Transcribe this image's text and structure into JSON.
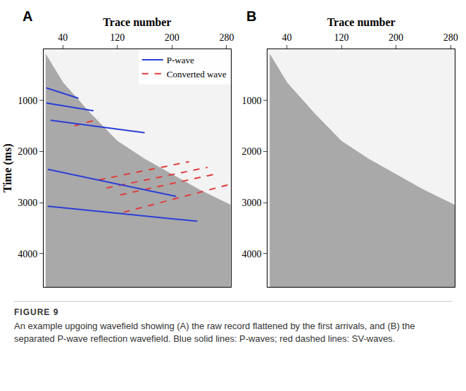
{
  "caption": {
    "label": "FIGURE 9",
    "text": "An example upgoing wavefield showing (A) the raw record flattened by the first arrivals, and (B) the separated P-wave reflection wavefield. Blue solid lines: P-waves; red dashed lines: SV-waves."
  },
  "chart_data": [
    {
      "type": "line",
      "title": "A",
      "xlabel": "Trace number",
      "ylabel": "Time (ms)",
      "xlim": [
        12,
        286
      ],
      "xticks": [
        40,
        120,
        200,
        280
      ],
      "ylim": [
        0,
        4650
      ],
      "yticks": [
        1000,
        2000,
        3000,
        4000
      ],
      "legend": "top right",
      "series": [
        {
          "type": "area",
          "color": "#a9a9a9",
          "x": [
            15,
            40,
            80,
            120,
            160,
            200,
            240,
            286
          ],
          "values": [
            100,
            650,
            1250,
            1800,
            2150,
            2450,
            2750,
            3050
          ]
        },
        {
          "name": "Converted wave",
          "color": "#e03c3c",
          "line_style": "dash",
          "x": [
            57,
            93,
            null,
            93,
            225,
            null,
            104,
            252,
            null,
            124,
            262,
            null,
            129,
            283
          ],
          "values": [
            1500,
            1365,
            null,
            2555,
            2200,
            null,
            2716,
            2310,
            null,
            2850,
            2446,
            null,
            3190,
            2650
          ]
        },
        {
          "name": "P-wave",
          "color": "#2b3fd6",
          "line_style": "solid",
          "x": [
            16,
            63,
            null,
            16,
            85,
            null,
            22,
            160,
            null,
            18,
            206,
            null,
            18,
            237
          ],
          "values": [
            757,
            960,
            null,
            1054,
            1203,
            null,
            1390,
            1635,
            null,
            2350,
            2880,
            null,
            3070,
            3365
          ]
        }
      ]
    },
    {
      "type": "line",
      "title": "B",
      "xlabel": "Trace number",
      "xlim": [
        12,
        286
      ],
      "xticks": [
        40,
        120,
        200,
        280
      ],
      "ylim": [
        0,
        4650
      ],
      "yticks": [
        1000,
        2000,
        3000,
        4000
      ],
      "series": [
        {
          "type": "area",
          "color": "#a9a9a9",
          "x": [
            15,
            40,
            80,
            120,
            160,
            200,
            240,
            286
          ],
          "values": [
            100,
            650,
            1250,
            1800,
            2150,
            2450,
            2750,
            3050
          ]
        }
      ]
    }
  ]
}
